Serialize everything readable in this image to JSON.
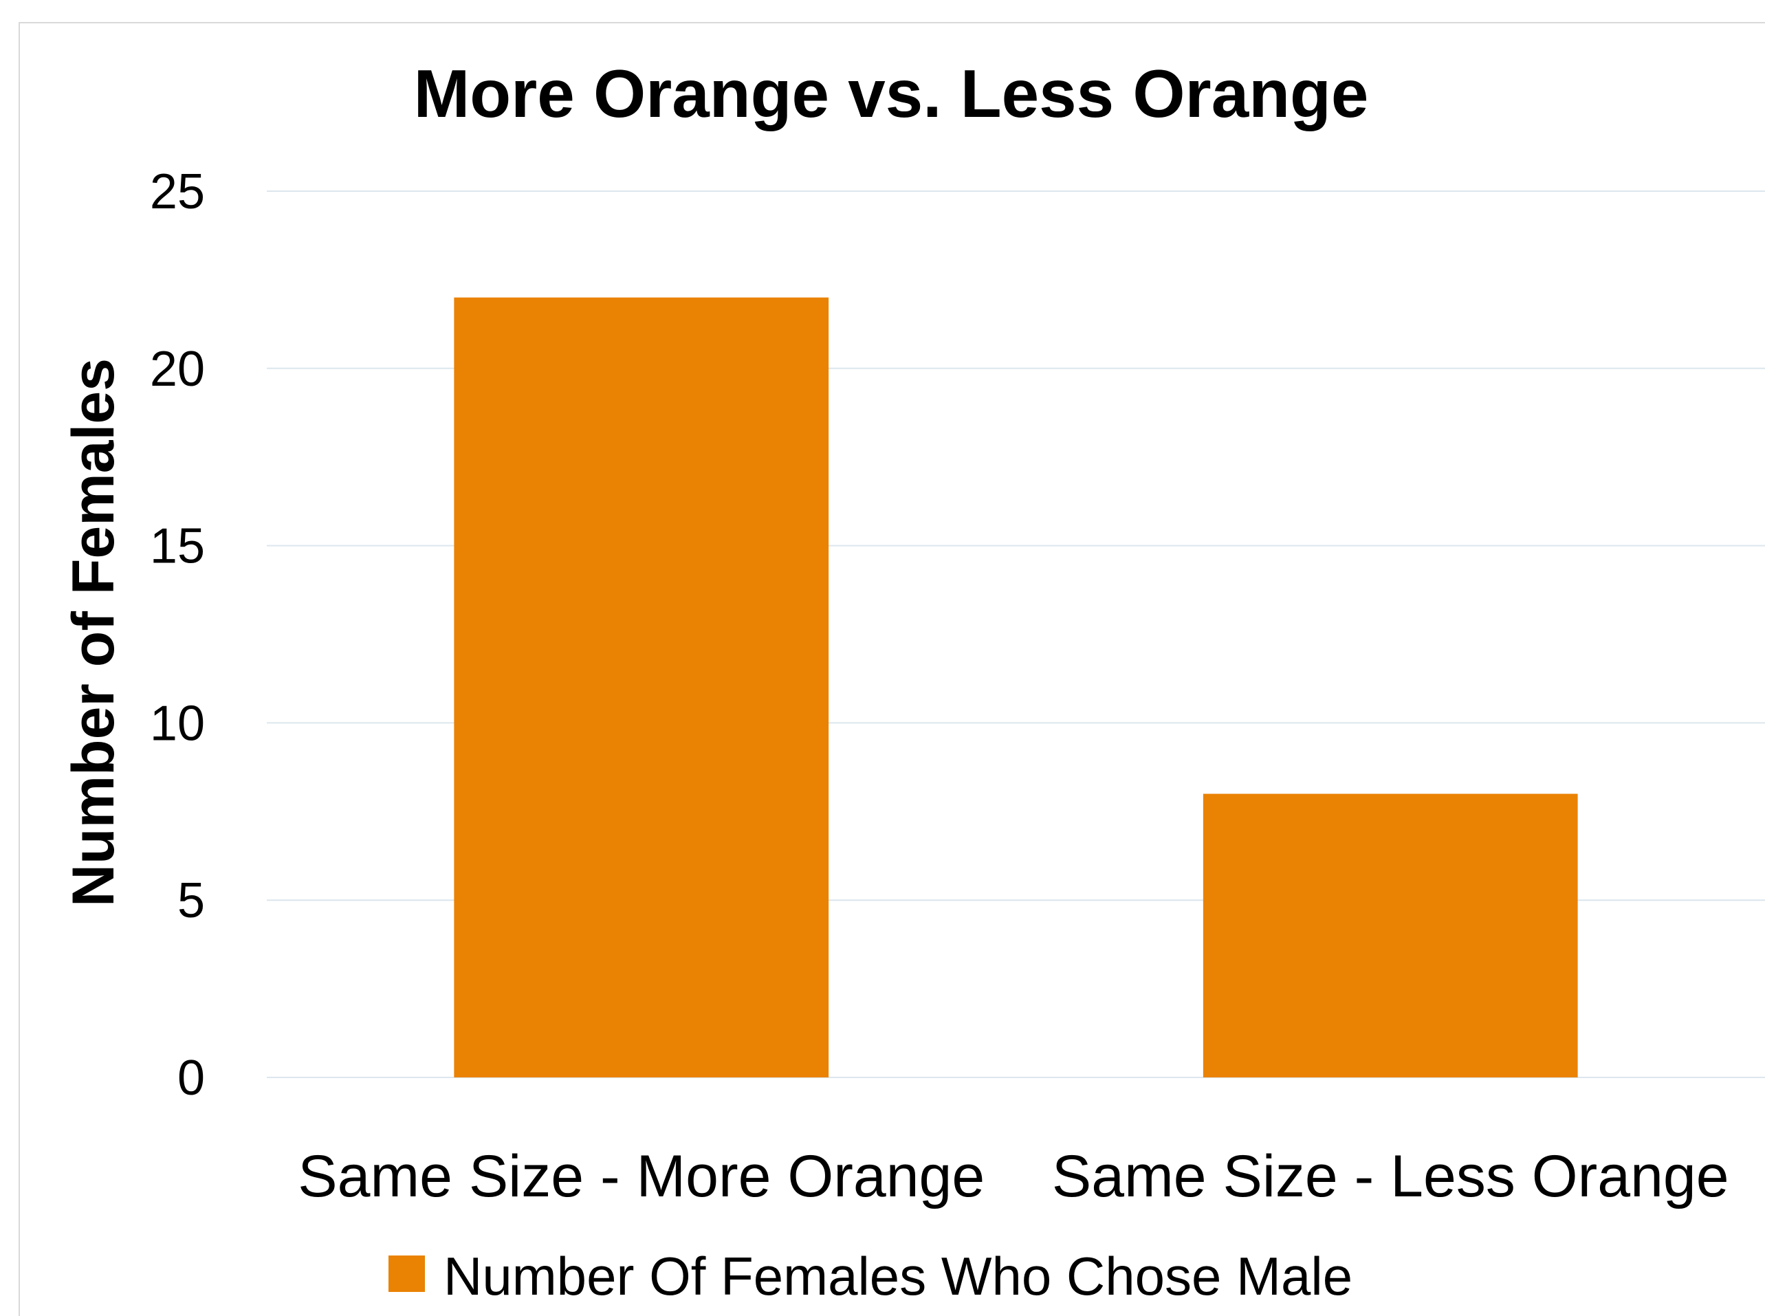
{
  "chart_data": {
    "type": "bar",
    "title": "More Orange vs. Less Orange",
    "ylabel": "Number of Females",
    "xlabel": "",
    "categories": [
      "Same Size - More Orange",
      "Same Size - Less Orange"
    ],
    "series": [
      {
        "name": "Number Of Females Who Chose Male",
        "values": [
          22,
          8
        ],
        "color": "#ea8204"
      }
    ],
    "ylim": [
      0,
      25
    ],
    "yticks": [
      0,
      5,
      10,
      15,
      20,
      25
    ],
    "grid": true,
    "gridColor": "#dce6ee",
    "legend": "bottom"
  }
}
